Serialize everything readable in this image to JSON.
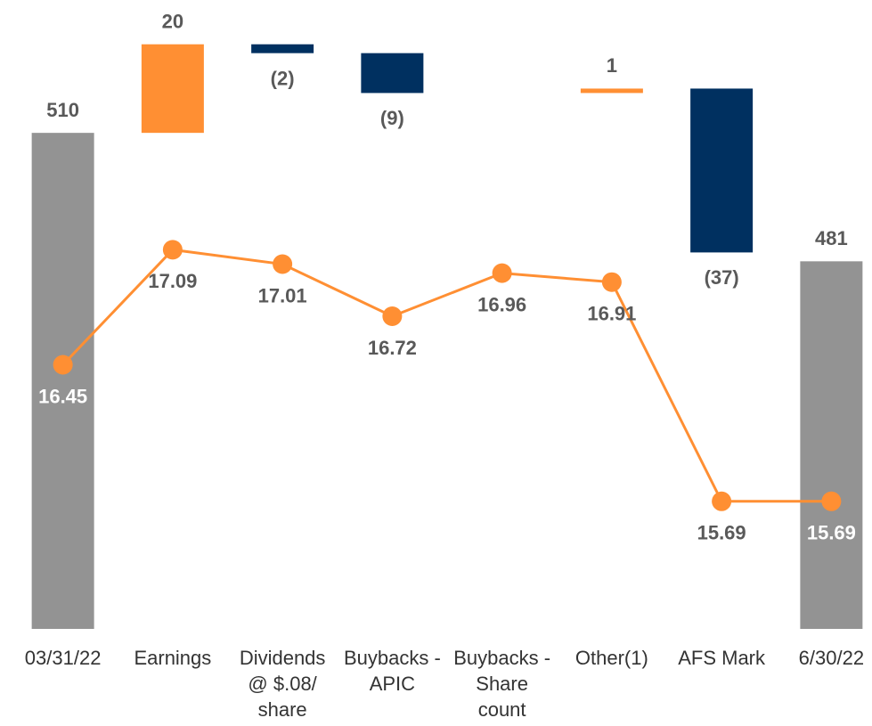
{
  "chart_data": {
    "type": "waterfall",
    "categories": [
      "03/31/22",
      "Earnings",
      "Dividends @ $.08/ share",
      "Buybacks - APIC",
      "Buybacks - Share count",
      "Other(1)",
      "AFS Mark",
      "6/30/22"
    ],
    "series": [
      {
        "type": "waterfall",
        "values": [
          510,
          20,
          -2,
          -9,
          null,
          1,
          -37,
          481
        ],
        "value_labels": [
          "510",
          "20",
          "(2)",
          "(9)",
          null,
          "1",
          "(37)",
          "481"
        ],
        "measure": [
          "absolute",
          "relative",
          "relative",
          "relative",
          "relative",
          "relative",
          "relative",
          "total"
        ],
        "colors": {
          "total": "#939393",
          "increase": "#ff8f33",
          "decrease": "#003060"
        }
      },
      {
        "type": "line",
        "axis": "y2",
        "values": [
          16.45,
          17.09,
          17.01,
          16.72,
          16.96,
          16.91,
          15.69,
          15.69
        ],
        "color": "#ff8f33"
      }
    ],
    "ylim": [
      398,
      540
    ],
    "y2lim": [
      14.98,
      18.48
    ]
  }
}
